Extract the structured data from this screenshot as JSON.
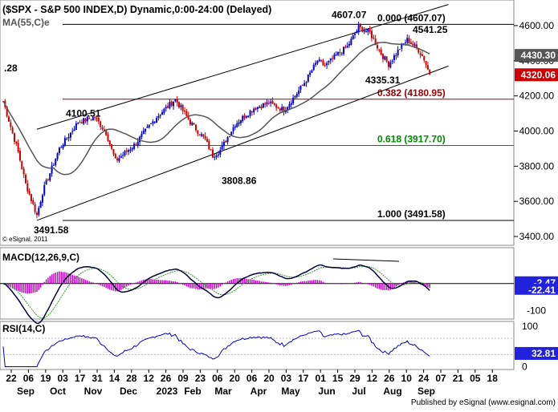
{
  "header": {
    "title": "($SPX - S&P 500 INDEX,D) Dynamic,0:00-24:00 (Delayed)",
    "ma_label": "MA(55,C)e",
    "partial_value": ".28",
    "copyright": "© eSignal, 2011"
  },
  "footer": {
    "publisher": "Published by eSignal (www.esignal.com)"
  },
  "colors": {
    "bull": "#0000cc",
    "bear": "#cc0000",
    "ma": "#555555",
    "fib_red": "#990000",
    "fib_green": "#008800",
    "macd_hist": "#cc00cc",
    "price_tag": "#555555",
    "current_tag": "#cc0000",
    "pane_tag": "#2222dd"
  },
  "chart_data": [
    {
      "type": "candlestick",
      "name": "price",
      "y_axis": {
        "range": [
          3350,
          4700
        ],
        "ticks": [
          3400,
          3600,
          3800,
          4000,
          4200,
          4400,
          4600
        ]
      },
      "x_ticks": [
        "22",
        "06",
        "19",
        "03",
        "17",
        "31",
        "14",
        "28",
        "12",
        "26",
        "09",
        "23",
        "06",
        "20",
        "06",
        "20",
        "03",
        "17",
        "01",
        "15",
        "29",
        "12",
        "26",
        "10",
        "24",
        "07",
        "21",
        "05",
        "18"
      ],
      "x_months": [
        "Sep",
        "Oct",
        "Nov",
        "Dec",
        "2023",
        "Feb",
        "Mar",
        "Apr",
        "May",
        "Jun",
        "Jul",
        "Aug",
        "Sep"
      ],
      "anchors": [
        {
          "i": 0,
          "c": 4170
        },
        {
          "i": 8,
          "c": 3880
        },
        {
          "i": 12,
          "c": 3700
        },
        {
          "i": 18,
          "c": 3520
        },
        {
          "i": 21,
          "c": 3650
        },
        {
          "i": 30,
          "c": 3900
        },
        {
          "i": 40,
          "c": 4050
        },
        {
          "i": 49,
          "c": 4080
        },
        {
          "i": 55,
          "c": 3990
        },
        {
          "i": 60,
          "c": 3830
        },
        {
          "i": 70,
          "c": 3920
        },
        {
          "i": 82,
          "c": 4080
        },
        {
          "i": 92,
          "c": 4180
        },
        {
          "i": 100,
          "c": 4050
        },
        {
          "i": 108,
          "c": 3950
        },
        {
          "i": 112,
          "c": 3860
        },
        {
          "i": 116,
          "c": 3890
        },
        {
          "i": 124,
          "c": 4040
        },
        {
          "i": 134,
          "c": 4130
        },
        {
          "i": 142,
          "c": 4160
        },
        {
          "i": 150,
          "c": 4120
        },
        {
          "i": 156,
          "c": 4200
        },
        {
          "i": 162,
          "c": 4290
        },
        {
          "i": 168,
          "c": 4400
        },
        {
          "i": 172,
          "c": 4370
        },
        {
          "i": 178,
          "c": 4430
        },
        {
          "i": 184,
          "c": 4480
        },
        {
          "i": 190,
          "c": 4590
        },
        {
          "i": 196,
          "c": 4560
        },
        {
          "i": 202,
          "c": 4440
        },
        {
          "i": 206,
          "c": 4380
        },
        {
          "i": 212,
          "c": 4470
        },
        {
          "i": 216,
          "c": 4520
        },
        {
          "i": 222,
          "c": 4460
        },
        {
          "i": 225,
          "c": 4410
        },
        {
          "i": 228,
          "c": 4320
        }
      ],
      "moving_average": {
        "name": "MA(55,C)e",
        "value": 4430.3
      },
      "current_close": 4320.06,
      "annotations": [
        {
          "text": "4607.07",
          "price": 4607.07
        },
        {
          "text": "4541.25",
          "price": 4541.25
        },
        {
          "text": "4335.31",
          "price": 4335.31
        },
        {
          "text": "4100.51",
          "price": 4100.51
        },
        {
          "text": "3808.86",
          "price": 3808.86
        },
        {
          "text": "3491.58",
          "price": 3491.58
        }
      ],
      "fib_levels": [
        {
          "ratio": "0.000",
          "label": "0.000 (4607.07)",
          "price": 4607.07,
          "color": "#000000"
        },
        {
          "ratio": "0.382",
          "label": "0.382 (4180.95)",
          "price": 4180.95,
          "color": "#990000"
        },
        {
          "ratio": "0.618",
          "label": "0.618 (3917.70)",
          "price": 3917.7,
          "color": "#008800"
        },
        {
          "ratio": "1.000",
          "label": "1.000 (3491.58)",
          "price": 3491.58,
          "color": "#000000"
        }
      ],
      "price_tags": [
        {
          "label": "4430.30",
          "price": 4430.3,
          "kind": "ma"
        },
        {
          "label": "4320.06",
          "price": 4320.06,
          "kind": "current"
        }
      ],
      "channel": {
        "lower": [
          {
            "i": 18,
            "p": 3491.58
          },
          {
            "i": 238,
            "p": 4370
          }
        ],
        "upper": [
          {
            "i": 18,
            "p": 4010
          },
          {
            "i": 238,
            "p": 4720
          }
        ]
      }
    },
    {
      "type": "macd",
      "name": "MACD(12,26,9,C)",
      "y_axis": {
        "range": [
          -130,
          110
        ],
        "ticks": [
          -100
        ]
      },
      "zero_value": -2.47,
      "last_values": [
        "-2.47",
        "-22.41"
      ]
    },
    {
      "type": "rsi",
      "name": "RSI(14,C)",
      "y_axis": {
        "range": [
          -5,
          110
        ],
        "ticks": [
          0,
          100
        ]
      },
      "last_value": "32.81"
    }
  ]
}
